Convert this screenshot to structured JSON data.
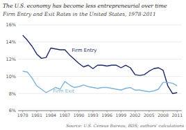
{
  "chart_data": {
    "type": "line",
    "title": "The U.S. economy has become less entrepreneurial over time",
    "subtitle": "Firm Entry and Exit Rates in the United States, 1978-2011",
    "source": "Source: U.S. Census Bureau, BDS; authors' calculations",
    "x": [
      1978,
      1979,
      1980,
      1981,
      1982,
      1983,
      1984,
      1985,
      1986,
      1987,
      1988,
      1989,
      1990,
      1991,
      1992,
      1993,
      1994,
      1995,
      1996,
      1997,
      1998,
      1999,
      2000,
      2001,
      2002,
      2003,
      2004,
      2005,
      2006,
      2007,
      2008,
      2009,
      2010,
      2011
    ],
    "series": [
      {
        "color": "#1b2a6b",
        "values": [
          14.8,
          14.2,
          13.5,
          12.6,
          12.1,
          12.2,
          13.3,
          13.2,
          13.1,
          13.1,
          12.5,
          12.0,
          11.5,
          11.1,
          11.3,
          10.9,
          11.3,
          11.3,
          11.2,
          11.3,
          11.3,
          11.0,
          11.3,
          11.0,
          10.2,
          10.1,
          10.2,
          10.6,
          10.9,
          11.0,
          10.7,
          8.9,
          8.0,
          8.1
        ]
      },
      {
        "color": "#7fb3d9",
        "values": [
          10.6,
          10.5,
          9.8,
          8.9,
          8.5,
          8.1,
          8.4,
          8.7,
          8.5,
          9.4,
          9.0,
          8.7,
          8.8,
          9.0,
          8.8,
          8.7,
          8.6,
          8.7,
          8.7,
          8.6,
          8.5,
          8.4,
          8.6,
          8.7,
          8.4,
          8.4,
          8.3,
          8.2,
          8.3,
          8.5,
          9.3,
          9.3,
          9.2,
          8.9
        ]
      }
    ],
    "annotations": [
      {
        "text": "Firm Entry",
        "x": 1988.5,
        "y": 12.75,
        "color": "#1b2a6b"
      },
      {
        "text": "Firm Exit",
        "x": 1984.5,
        "y": 8.05,
        "color": "#7fb3d9"
      }
    ],
    "xlim": [
      1977,
      2012
    ],
    "xticks": [
      1978,
      1981,
      1984,
      1987,
      1990,
      1993,
      1996,
      1999,
      2002,
      2005,
      2008,
      2011
    ],
    "ylim": [
      6,
      16
    ],
    "yticks": [
      {
        "value": 6,
        "label": "6%"
      },
      {
        "value": 8,
        "label": "8%"
      },
      {
        "value": 10,
        "label": "10%"
      },
      {
        "value": 12,
        "label": "12%"
      },
      {
        "value": 14,
        "label": "14%"
      },
      {
        "value": 16,
        "label": "16%"
      }
    ],
    "grid": true
  }
}
